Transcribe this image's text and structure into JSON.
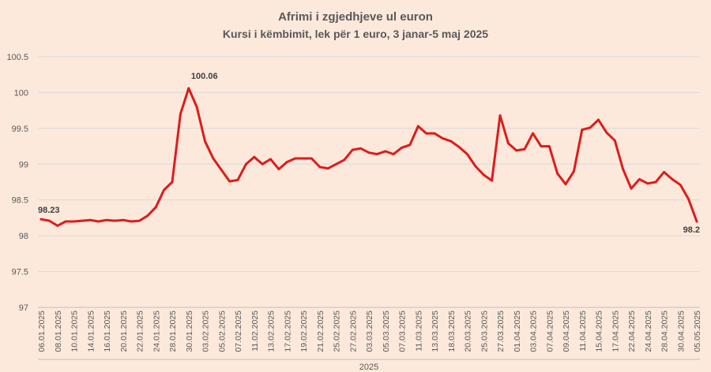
{
  "chart_data": {
    "type": "line",
    "title": "Afrimi i zgjedhjeve ul euron",
    "subtitle": "Kursi i këmbimit, lek për 1 euro, 3 janar-5 maj 2025",
    "xlabel": "2025",
    "ylabel": "",
    "ylim": [
      97,
      100.5
    ],
    "yticks": [
      "97",
      "97.5",
      "98",
      "98.5",
      "99",
      "99.5",
      "100",
      "100.5"
    ],
    "grid": true,
    "legend": "none",
    "line_color": "#e01b1b",
    "x_tick_labels": [
      "06.01.2025",
      "08.01.2025",
      "10.01.2025",
      "14.01.2025",
      "16.01.2025",
      "20.01.2025",
      "22.01.2025",
      "24.01.2025",
      "28.01.2025",
      "30.01.2025",
      "03.02.2025",
      "05.02.2025",
      "07.02.2025",
      "11.02.2025",
      "13.02.2025",
      "17.02.2025",
      "19.02.2025",
      "21.02.2025",
      "25.02.2025",
      "27.02.2025",
      "03.03.2025",
      "05.03.2025",
      "07.03.2025",
      "11.03.2025",
      "13.03.2025",
      "18.03.2025",
      "20.03.2025",
      "25.03.2025",
      "27.03.2025",
      "01.04.2025",
      "03.04.2025",
      "07.04.2025",
      "09.04.2025",
      "11.04.2025",
      "15.04.2025",
      "17.04.2025",
      "22.04.2025",
      "24.04.2025",
      "28.04.2025",
      "30.04.2025",
      "05.05.2025"
    ],
    "series": [
      {
        "values": [
          98.23,
          98.21,
          98.14,
          98.2,
          98.2,
          98.21,
          98.22,
          98.2,
          98.22,
          98.21,
          98.22,
          98.2,
          98.21,
          98.28,
          98.4,
          98.64,
          98.75,
          99.7,
          100.06,
          99.8,
          99.32,
          99.08,
          98.92,
          98.76,
          98.78,
          99.0,
          99.1,
          99.0,
          99.07,
          98.93,
          99.03,
          99.08,
          99.08,
          99.08,
          98.96,
          98.94,
          99.0,
          99.06,
          99.2,
          99.22,
          99.16,
          99.14,
          99.18,
          99.14,
          99.23,
          99.27,
          99.53,
          99.43,
          99.43,
          99.36,
          99.32,
          99.24,
          99.14,
          98.97,
          98.85,
          98.77,
          99.68,
          99.29,
          99.19,
          99.21,
          99.43,
          99.25,
          99.25,
          98.87,
          98.72,
          98.9,
          99.48,
          99.51,
          99.62,
          99.44,
          99.33,
          98.93,
          98.66,
          98.79,
          98.73,
          98.75,
          98.89,
          98.79,
          98.71,
          98.51,
          98.2
        ],
        "point_labels": [
          {
            "index": 0,
            "text": "98.23"
          },
          {
            "index": 18,
            "text": "100.06"
          },
          {
            "index": 80,
            "text": "98.2"
          }
        ]
      }
    ]
  }
}
